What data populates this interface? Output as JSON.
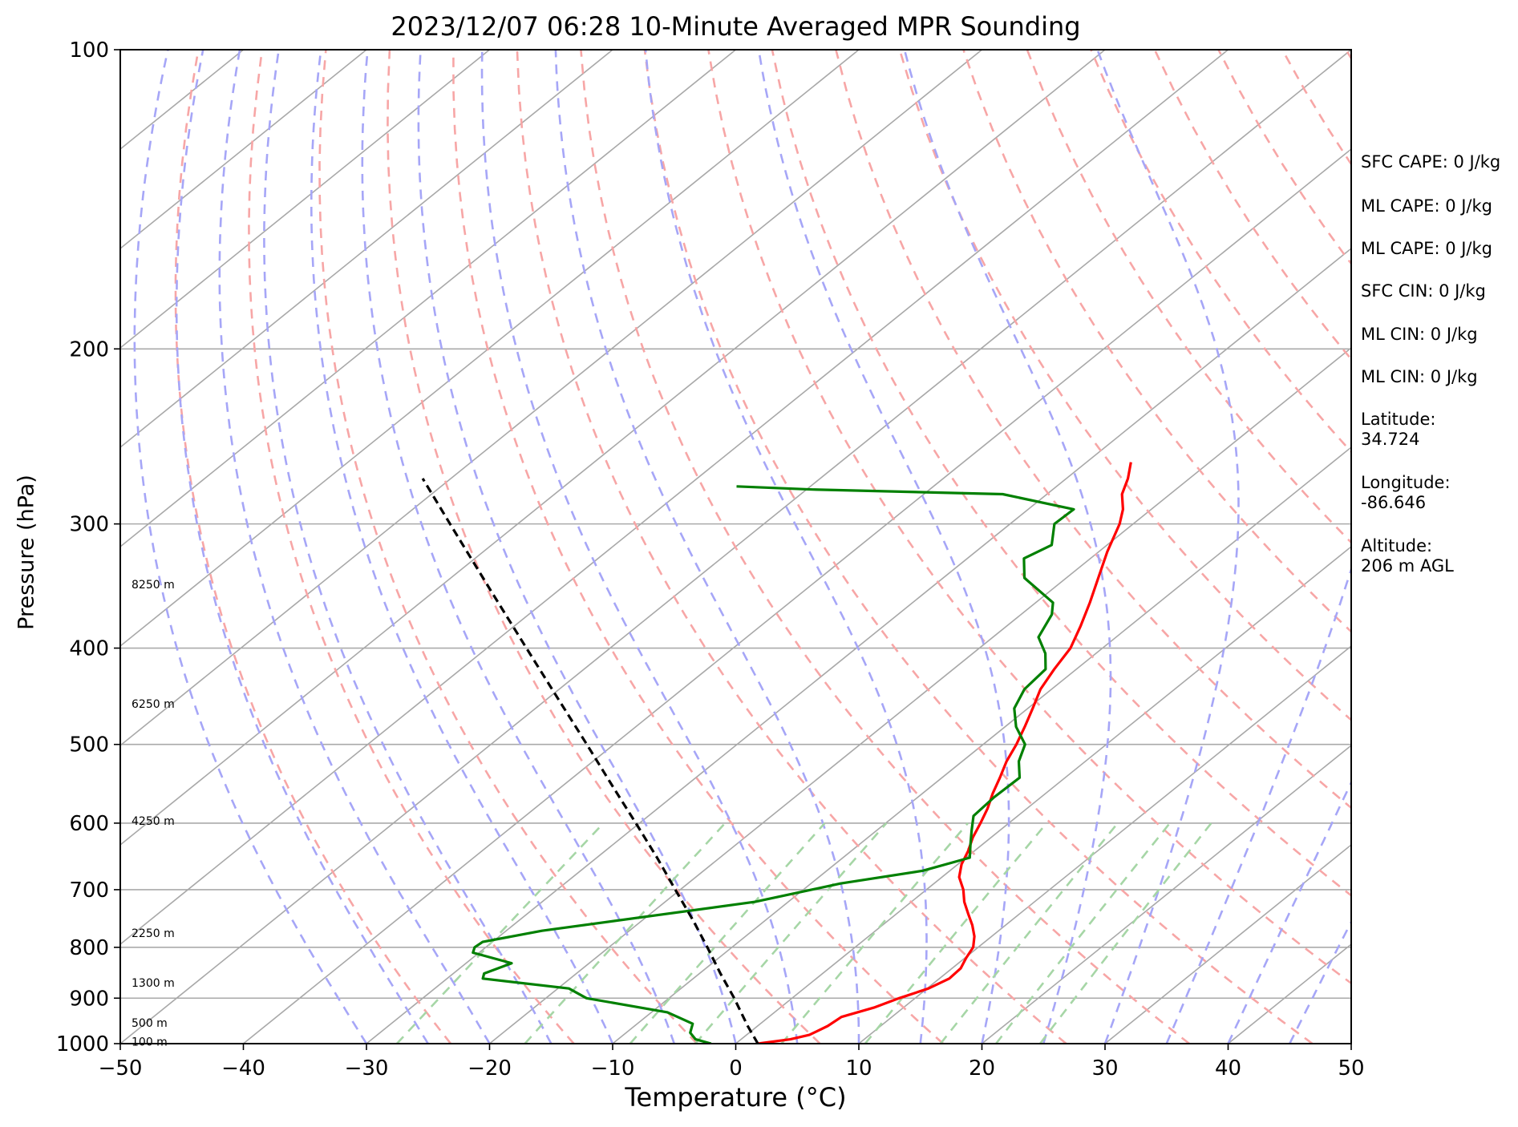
{
  "chart_data": {
    "type": "line",
    "title": "2023/12/07 06:28 10-Minute Averaged MPR Sounding",
    "xlabel": "Temperature (°C)",
    "ylabel": "Pressure (hPa)",
    "xlim": [
      -50,
      50
    ],
    "ylim": [
      1000,
      100
    ],
    "y_scale": "log",
    "x_ticks": [
      -50,
      -40,
      -30,
      -20,
      -10,
      0,
      10,
      20,
      30,
      40,
      50
    ],
    "x_tick_labels": [
      "−50",
      "−40",
      "−30",
      "−20",
      "−10",
      "0",
      "10",
      "20",
      "30",
      "40",
      "50"
    ],
    "y_ticks": [
      100,
      200,
      300,
      400,
      500,
      600,
      700,
      800,
      900,
      1000
    ],
    "y_tick_labels": [
      "100",
      "200",
      "300",
      "400",
      "500",
      "600",
      "700",
      "800",
      "900",
      "1000"
    ],
    "grid": true,
    "skew": true,
    "series": [
      {
        "role": "temperature",
        "color": "#ff0000",
        "points": [
          [
            1000,
            1.8
          ],
          [
            990,
            4.0
          ],
          [
            980,
            5.1
          ],
          [
            960,
            5.7
          ],
          [
            940,
            5.9
          ],
          [
            920,
            7.6
          ],
          [
            900,
            8.7
          ],
          [
            880,
            10.1
          ],
          [
            860,
            10.8
          ],
          [
            840,
            10.7
          ],
          [
            820,
            10.1
          ],
          [
            800,
            9.6
          ],
          [
            780,
            8.6
          ],
          [
            760,
            7.3
          ],
          [
            740,
            5.8
          ],
          [
            720,
            4.3
          ],
          [
            700,
            3.0
          ],
          [
            680,
            1.4
          ],
          [
            660,
            0.3
          ],
          [
            640,
            -0.5
          ],
          [
            620,
            -1.5
          ],
          [
            600,
            -2.3
          ],
          [
            580,
            -3.2
          ],
          [
            560,
            -4.3
          ],
          [
            540,
            -5.3
          ],
          [
            520,
            -6.4
          ],
          [
            500,
            -7.3
          ],
          [
            480,
            -8.4
          ],
          [
            460,
            -9.6
          ],
          [
            440,
            -10.9
          ],
          [
            420,
            -11.8
          ],
          [
            400,
            -12.6
          ],
          [
            380,
            -14.0
          ],
          [
            360,
            -15.6
          ],
          [
            340,
            -17.4
          ],
          [
            320,
            -19.3
          ],
          [
            300,
            -21.1
          ],
          [
            290,
            -22.3
          ],
          [
            280,
            -23.9
          ],
          [
            270,
            -25.0
          ],
          [
            260,
            -26.4
          ]
        ]
      },
      {
        "role": "dewpoint",
        "color": "#008000",
        "points": [
          [
            1000,
            -2.0
          ],
          [
            990,
            -3.7
          ],
          [
            975,
            -4.8
          ],
          [
            955,
            -5.5
          ],
          [
            930,
            -8.7
          ],
          [
            900,
            -16.7
          ],
          [
            880,
            -19.1
          ],
          [
            860,
            -27.1
          ],
          [
            850,
            -27.5
          ],
          [
            830,
            -26.3
          ],
          [
            810,
            -30.5
          ],
          [
            800,
            -30.9
          ],
          [
            790,
            -30.8
          ],
          [
            770,
            -27.1
          ],
          [
            720,
            -12.7
          ],
          [
            690,
            -7.6
          ],
          [
            670,
            -2.2
          ],
          [
            650,
            0.3
          ],
          [
            630,
            -1.0
          ],
          [
            610,
            -2.3
          ],
          [
            590,
            -3.6
          ],
          [
            565,
            -3.8
          ],
          [
            540,
            -3.7
          ],
          [
            520,
            -5.4
          ],
          [
            500,
            -6.6
          ],
          [
            480,
            -9.1
          ],
          [
            460,
            -11.1
          ],
          [
            440,
            -12.2
          ],
          [
            420,
            -12.5
          ],
          [
            405,
            -14.1
          ],
          [
            390,
            -16.3
          ],
          [
            370,
            -17.5
          ],
          [
            360,
            -18.6
          ],
          [
            340,
            -23.4
          ],
          [
            325,
            -25.4
          ],
          [
            315,
            -24.5
          ],
          [
            300,
            -26.4
          ],
          [
            290,
            -26.3
          ],
          [
            280,
            -33.6
          ],
          [
            277,
            -49.5
          ],
          [
            275,
            -56.0
          ]
        ]
      },
      {
        "role": "parcel",
        "color": "#000000",
        "style": "dashed",
        "points": [
          [
            1000,
            1.8
          ],
          [
            960,
            -0.8
          ],
          [
            900,
            -4.7
          ],
          [
            850,
            -8.3
          ],
          [
            800,
            -12.0
          ],
          [
            750,
            -16.0
          ],
          [
            700,
            -20.4
          ],
          [
            650,
            -25.1
          ],
          [
            600,
            -30.3
          ],
          [
            550,
            -36.0
          ],
          [
            500,
            -42.2
          ],
          [
            450,
            -49.1
          ],
          [
            400,
            -56.8
          ],
          [
            350,
            -65.5
          ],
          [
            300,
            -75.5
          ],
          [
            270,
            -82.3
          ]
        ]
      }
    ],
    "height_labels": [
      {
        "text": "8250 m",
        "p": 345
      },
      {
        "text": "6250 m",
        "p": 455
      },
      {
        "text": "4250 m",
        "p": 597
      },
      {
        "text": "2250 m",
        "p": 774
      },
      {
        "text": "1300 m",
        "p": 868
      },
      {
        "text": "500 m",
        "p": 953
      },
      {
        "text": "100 m",
        "p": 995
      }
    ],
    "info_lines": [
      "SFC CAPE: 0 J/kg",
      "ML CAPE: 0 J/kg",
      "ML CAPE: 0 J/kg",
      "SFC CIN: 0 J/kg",
      "ML CIN: 0 J/kg",
      "ML CIN: 0 J/kg",
      "Latitude:\n34.724",
      "Longitude:\n-86.646",
      "Altitude:\n206 m AGL"
    ],
    "dry_adiabat_thetas_K": [
      250,
      260,
      270,
      280,
      290,
      300,
      310,
      320,
      330,
      340,
      350,
      360,
      370,
      380,
      390,
      400,
      410,
      420,
      430,
      440,
      450
    ],
    "moist_adiabat_start_temps_C": [
      -30,
      -25,
      -20,
      -15,
      -10,
      -5,
      0,
      5,
      10,
      15,
      20,
      25,
      30,
      35,
      40,
      45,
      50,
      55
    ],
    "mixing_ratio_lines_gkg": [
      0.4,
      1,
      2,
      3,
      5,
      8,
      12,
      16,
      20
    ],
    "colors": {
      "grid": "#aaaaaa",
      "isotherm": "#a8a8a8",
      "dry_adiabat": "#f7a6a6",
      "moist_adiabat": "#a6a6f7",
      "mixing_ratio": "#a6d6a6"
    }
  }
}
